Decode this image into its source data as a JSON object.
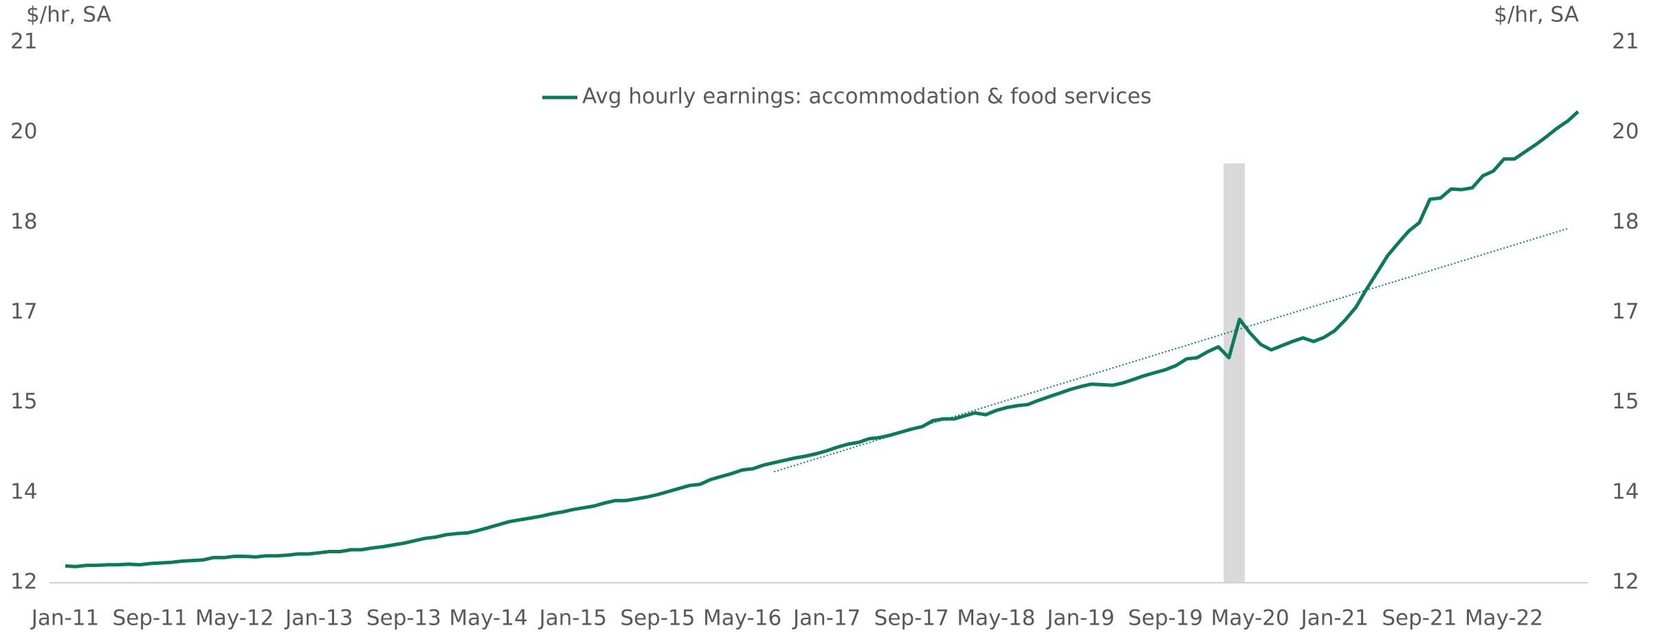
{
  "chart_data": {
    "type": "line",
    "y_unit_left": "$/hr, SA",
    "y_unit_right": "$/hr, SA",
    "categories": [
      "Jan-11",
      null,
      null,
      null,
      null,
      null,
      null,
      null,
      "Sep-11",
      null,
      null,
      null,
      null,
      null,
      null,
      null,
      "May-12",
      null,
      null,
      null,
      null,
      null,
      null,
      null,
      "Jan-13",
      null,
      null,
      null,
      null,
      null,
      null,
      null,
      "Sep-13",
      null,
      null,
      null,
      null,
      null,
      null,
      null,
      "May-14",
      null,
      null,
      null,
      null,
      null,
      null,
      null,
      "Jan-15",
      null,
      null,
      null,
      null,
      null,
      null,
      null,
      "Sep-15",
      null,
      null,
      null,
      null,
      null,
      null,
      null,
      "May-16",
      null,
      null,
      null,
      null,
      null,
      null,
      null,
      "Jan-17",
      null,
      null,
      null,
      null,
      null,
      null,
      null,
      "Sep-17",
      null,
      null,
      null,
      null,
      null,
      null,
      null,
      "May-18",
      null,
      null,
      null,
      null,
      null,
      null,
      null,
      "Jan-19",
      null,
      null,
      null,
      null,
      null,
      null,
      null,
      "Sep-19",
      null,
      null,
      null,
      null,
      null,
      null,
      null,
      "May-20",
      null,
      null,
      null,
      null,
      null,
      null,
      null,
      "Jan-21",
      null,
      null,
      null,
      null,
      null,
      null,
      null,
      "Sep-21",
      null,
      null,
      null,
      null,
      null,
      null,
      null,
      "May-22",
      null,
      null,
      null,
      null,
      null,
      null,
      null
    ],
    "series": [
      {
        "name": "Avg hourly earnings: accommodation & food services",
        "color": "#0b7a5a",
        "values": [
          12.28,
          12.27,
          12.29,
          12.29,
          12.3,
          12.3,
          12.31,
          12.3,
          12.32,
          12.33,
          12.34,
          12.36,
          12.37,
          12.38,
          12.42,
          12.42,
          12.44,
          12.44,
          12.43,
          12.45,
          12.45,
          12.46,
          12.48,
          12.48,
          12.5,
          12.52,
          12.52,
          12.55,
          12.55,
          12.58,
          12.6,
          12.63,
          12.66,
          12.7,
          12.74,
          12.76,
          12.8,
          12.82,
          12.83,
          12.87,
          12.92,
          12.97,
          13.02,
          13.05,
          13.08,
          13.11,
          13.15,
          13.18,
          13.22,
          13.25,
          13.28,
          13.33,
          13.37,
          13.37,
          13.4,
          13.43,
          13.47,
          13.52,
          13.57,
          13.62,
          13.64,
          13.72,
          13.77,
          13.82,
          13.88,
          13.9,
          13.96,
          14.0,
          14.04,
          14.08,
          14.11,
          14.15,
          14.2,
          14.26,
          14.31,
          14.34,
          14.4,
          14.42,
          14.46,
          14.51,
          14.56,
          14.6,
          14.7,
          14.73,
          14.73,
          14.78,
          14.83,
          14.8,
          14.87,
          14.92,
          14.95,
          14.97,
          15.04,
          15.1,
          15.16,
          15.22,
          15.27,
          15.31,
          15.3,
          15.29,
          15.33,
          15.39,
          15.45,
          15.5,
          15.55,
          15.62,
          15.73,
          15.75,
          15.85,
          15.93,
          15.75,
          16.39,
          16.16,
          15.97,
          15.88,
          15.95,
          16.02,
          16.08,
          16.02,
          16.09,
          16.2,
          16.38,
          16.59,
          16.89,
          17.17,
          17.45,
          17.66,
          17.86,
          18.0,
          18.39,
          18.41,
          18.56,
          18.55,
          18.58,
          18.78,
          18.86,
          19.06,
          19.06,
          19.18,
          19.3,
          19.43,
          19.57,
          19.69,
          19.85
        ]
      }
    ],
    "trend": {
      "start": 67,
      "end": 142,
      "values": [
        13.85,
        17.9
      ],
      "color": "#0b7a5a"
    },
    "shade": {
      "from": 110,
      "to": 112,
      "color": "#d9d9d9"
    },
    "ylim": [
      12,
      21
    ],
    "yticks": [
      12,
      {
        "value": 13.5,
        "label": "14"
      },
      15,
      {
        "value": 16.5,
        "label": "17"
      },
      18,
      {
        "value": 19.5,
        "label": "20"
      },
      21
    ],
    "grid": false,
    "legend": "top"
  }
}
